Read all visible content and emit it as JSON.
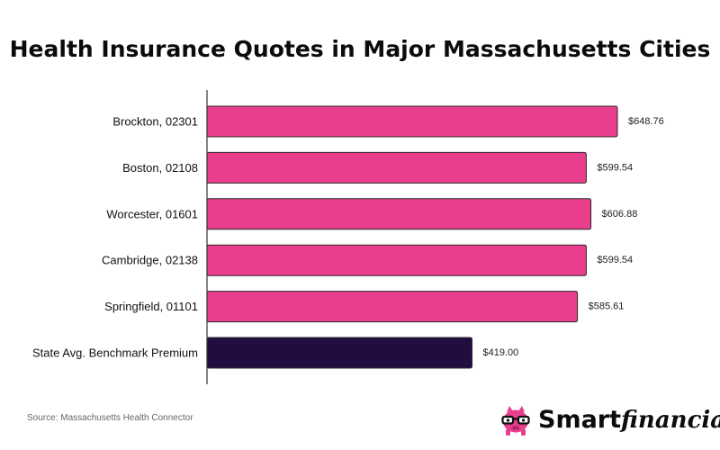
{
  "chart_data": {
    "type": "bar",
    "orientation": "horizontal",
    "title": "Health Insurance Quotes in Major Massachusetts Cities",
    "xlabel": "",
    "ylabel": "",
    "grid": false,
    "xlim": [
      0,
      750
    ],
    "categories": [
      "Brockton, 02301",
      "Boston, 02108",
      "Worcester, 01601",
      "Cambridge, 02138",
      "Springfield, 01101",
      "State Avg. Benchmark Premium"
    ],
    "values": [
      648.76,
      599.54,
      606.88,
      599.54,
      585.61,
      419.0
    ],
    "value_labels": [
      "$648.76",
      "$599.54",
      "$606.88",
      "$599.54",
      "$585.61",
      "$419.00"
    ],
    "colors": [
      "#e83e8c",
      "#e83e8c",
      "#e83e8c",
      "#e83e8c",
      "#e83e8c",
      "#220c40"
    ]
  },
  "source": "Source: Massachusetts Health Connector",
  "brand": {
    "logo_icon": "piggy-bank-with-glasses-icon",
    "word_part1": "Smart",
    "word_part2": "financial",
    "pink": "#e83e8c",
    "dark": "#111111"
  }
}
